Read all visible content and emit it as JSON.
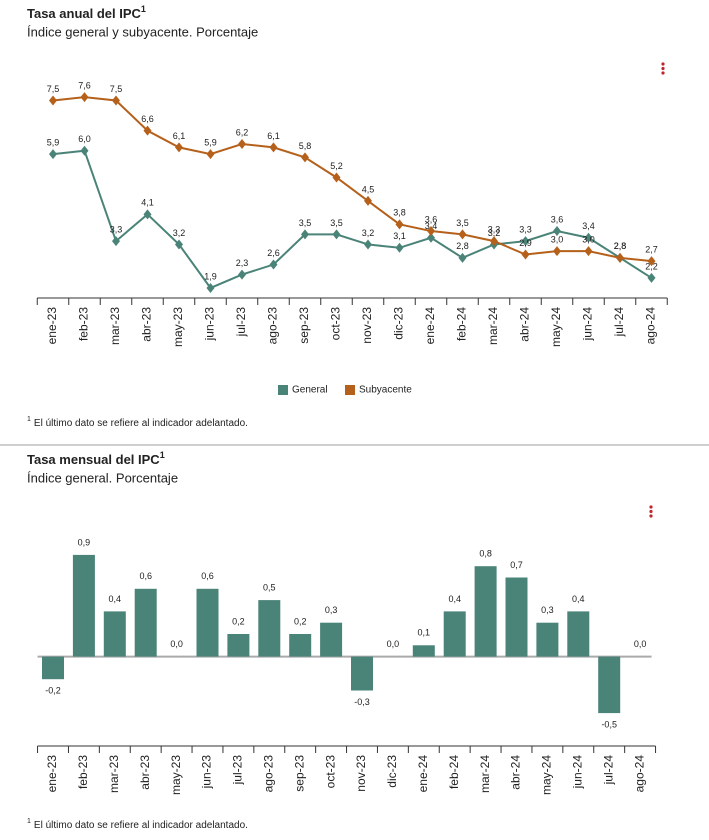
{
  "chart_data": [
    {
      "type": "line",
      "title": "Tasa anual del IPC",
      "title_mark": "1",
      "subtitle": "Índice general y subyacente. Porcentaje",
      "categories": [
        "ene-23",
        "feb-23",
        "mar-23",
        "abr-23",
        "may-23",
        "jun-23",
        "jul-23",
        "ago-23",
        "sep-23",
        "oct-23",
        "nov-23",
        "dic-23",
        "ene-24",
        "feb-24",
        "mar-24",
        "abr-24",
        "may-24",
        "jun-24",
        "jul-24",
        "ago-24"
      ],
      "series": [
        {
          "name": "General",
          "color": "#4a8378",
          "values": [
            5.9,
            6.0,
            3.3,
            4.1,
            3.2,
            1.9,
            2.3,
            2.6,
            3.5,
            3.5,
            3.2,
            3.1,
            3.4,
            2.8,
            3.2,
            3.3,
            3.6,
            3.4,
            2.8,
            2.2
          ],
          "value_labels": [
            "5,9",
            "6,0",
            "3,3",
            "4,1",
            "3,2",
            "1,9",
            "2,3",
            "2,6",
            "3,5",
            "3,5",
            "3,2",
            "3,1",
            "3,4",
            "2,8",
            "3,2",
            "3,3",
            "3,6",
            "3,4",
            "2,8",
            "2,2"
          ]
        },
        {
          "name": "Subyacente",
          "color": "#b5601b",
          "values": [
            7.5,
            7.6,
            7.5,
            6.6,
            6.1,
            5.9,
            6.2,
            6.1,
            5.8,
            5.2,
            4.5,
            3.8,
            3.6,
            3.5,
            3.3,
            2.9,
            3.0,
            3.0,
            2.8,
            2.7
          ],
          "value_labels": [
            "7,5",
            "7,6",
            "7,5",
            "6,6",
            "6,1",
            "5,9",
            "6,2",
            "6,1",
            "5,8",
            "5,2",
            "4,5",
            "3,8",
            "3,6",
            "3,5",
            "3,3",
            "2,9",
            "3,0",
            "3,0",
            "2,8",
            "2,7"
          ]
        }
      ],
      "ylim": [
        1.6,
        8.8
      ],
      "legend": "bottom",
      "footnote_mark": "1",
      "footnote": "El último dato se refiere al indicador adelantado."
    },
    {
      "type": "bar",
      "title": "Tasa mensual del IPC",
      "title_mark": "1",
      "subtitle": "Índice general. Porcentaje",
      "categories": [
        "ene-23",
        "feb-23",
        "mar-23",
        "abr-23",
        "may-23",
        "jun-23",
        "jul-23",
        "ago-23",
        "sep-23",
        "oct-23",
        "nov-23",
        "dic-23",
        "ene-24",
        "feb-24",
        "mar-24",
        "abr-24",
        "may-24",
        "jun-24",
        "jul-24",
        "ago-24"
      ],
      "color": "#4a8378",
      "values": [
        -0.2,
        0.9,
        0.4,
        0.6,
        0.0,
        0.6,
        0.2,
        0.5,
        0.2,
        0.3,
        -0.3,
        0.0,
        0.1,
        0.4,
        0.8,
        0.7,
        0.3,
        0.4,
        -0.5,
        0.0
      ],
      "value_labels": [
        "-0,2",
        "0,9",
        "0,4",
        "0,6",
        "0,0",
        "0,6",
        "0,2",
        "0,5",
        "0,2",
        "0,3",
        "-0,3",
        "0,0",
        "0,1",
        "0,4",
        "0,8",
        "0,7",
        "0,3",
        "0,4",
        "-0,5",
        "0,0"
      ],
      "ylim": [
        -0.8,
        1.2
      ],
      "footnote_mark": "1",
      "footnote": "El último dato se refiere al indicador adelantado."
    }
  ]
}
